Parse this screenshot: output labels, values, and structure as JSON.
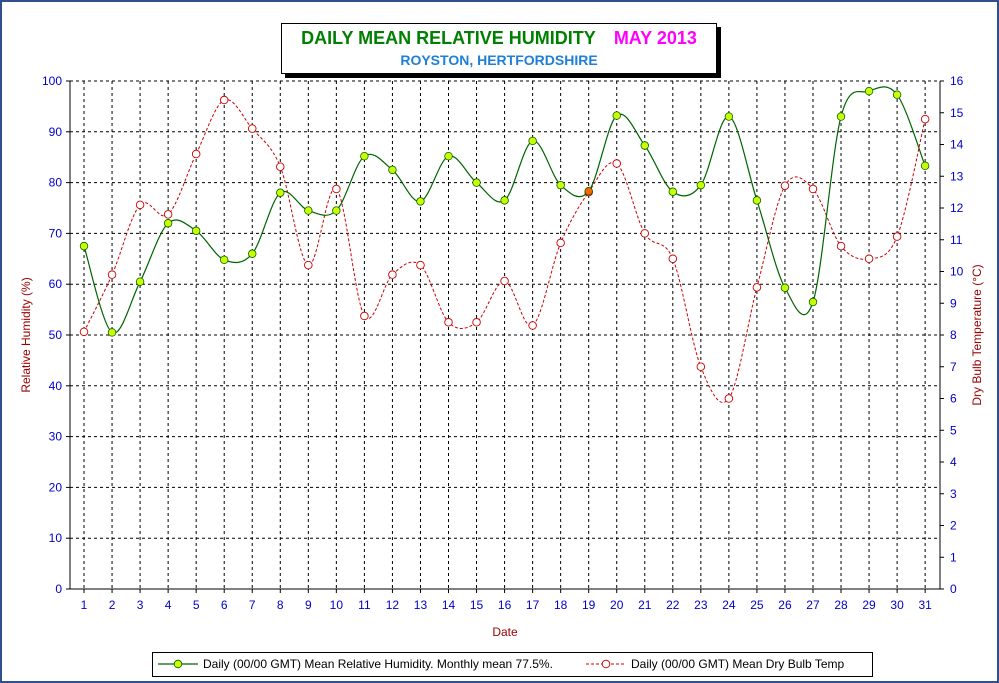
{
  "colors": {
    "rh_line": "#006400",
    "rh_marker": "#ccff00",
    "temp_line": "#cc0000",
    "temp_marker": "#cc0000",
    "axis_text": "#0000cc",
    "axis_label": "#990000",
    "title_green": "#008000",
    "title_magenta": "#ff00ff",
    "subtitle_blue": "#1f7fd8",
    "highlight_marker": "#ff6600"
  },
  "chart_data": {
    "type": "line",
    "title": "DAILY MEAN RELATIVE HUMIDITY",
    "title_month": "MAY 2013",
    "subtitle": "ROYSTON, HERTFORDSHIRE",
    "xlabel": "Date",
    "ylabel": "Relative Humidity (%)",
    "y2label": "Dry Bulb Temperature (°C)",
    "x": [
      1,
      2,
      3,
      4,
      5,
      6,
      7,
      8,
      9,
      10,
      11,
      12,
      13,
      14,
      15,
      16,
      17,
      18,
      19,
      20,
      21,
      22,
      23,
      24,
      25,
      26,
      27,
      28,
      29,
      30,
      31
    ],
    "ylim": [
      0,
      100
    ],
    "y2lim": [
      0,
      16
    ],
    "yticks": [
      0,
      10,
      20,
      30,
      40,
      50,
      60,
      70,
      80,
      90,
      100
    ],
    "y2ticks": [
      0,
      1,
      2,
      3,
      4,
      5,
      6,
      7,
      8,
      9,
      10,
      11,
      12,
      13,
      14,
      15,
      16
    ],
    "grid": true,
    "legend_position": "bottom",
    "series": [
      {
        "name": "Daily (00/00 GMT) Mean Relative Humidity. Monthly mean 77.5%.",
        "axis": "left",
        "style": "solid-spline",
        "values": [
          67.5,
          50.5,
          60.5,
          72.0,
          70.5,
          64.8,
          66.0,
          78.0,
          74.5,
          74.5,
          85.2,
          82.5,
          76.3,
          85.2,
          80.0,
          76.5,
          88.2,
          79.5,
          78.3,
          93.2,
          87.3,
          78.2,
          79.5,
          93.0,
          76.5,
          59.3,
          56.5,
          93.0,
          98.0,
          97.3,
          83.3
        ]
      },
      {
        "name": "Daily (00/00 GMT) Mean Dry Bulb Temp",
        "axis": "right",
        "style": "dashed-spline",
        "values": [
          8.1,
          9.9,
          12.1,
          11.8,
          13.7,
          15.4,
          14.5,
          13.3,
          10.2,
          12.6,
          8.6,
          9.9,
          10.2,
          8.4,
          8.4,
          9.7,
          8.3,
          10.9,
          12.5,
          13.4,
          11.2,
          10.4,
          7.0,
          6.0,
          9.5,
          12.7,
          12.6,
          10.8,
          10.4,
          11.1,
          14.8
        ]
      }
    ]
  }
}
